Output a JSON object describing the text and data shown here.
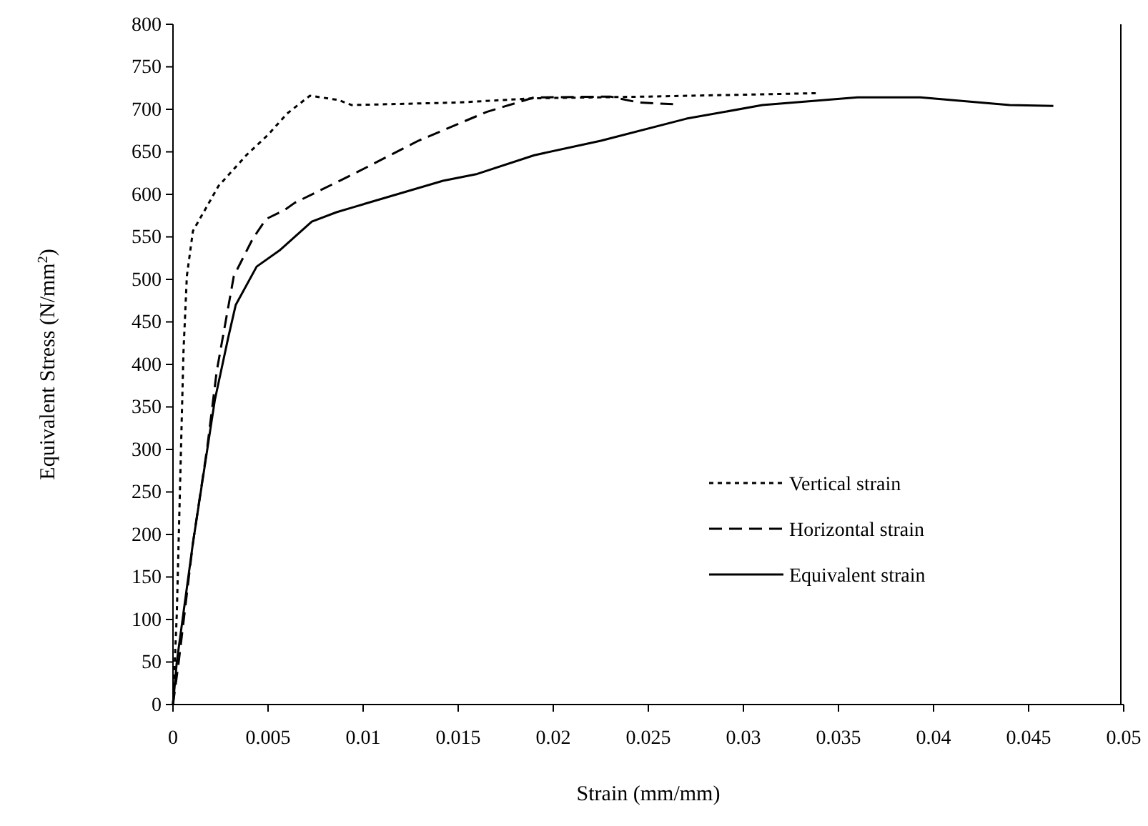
{
  "chart_data": {
    "type": "line",
    "xlabel": "Strain (mm/mm)",
    "ylabel": "Equivalent Stress (N/mm$^{2}$)",
    "xlim": [
      0,
      0.05
    ],
    "xticks": [
      0,
      0.005,
      0.01,
      0.015,
      0.02,
      0.025,
      0.03,
      0.035,
      0.04,
      0.045,
      0.05
    ],
    "ylim": [
      0,
      800
    ],
    "yticks": [
      0,
      50,
      100,
      150,
      200,
      250,
      300,
      350,
      400,
      450,
      500,
      550,
      600,
      650,
      700,
      750,
      800
    ],
    "grid": false,
    "legend": "right",
    "marker": "none",
    "series": [
      {
        "name": "Vertical strain",
        "color": "#000000",
        "line_style": "dotted",
        "x": [
          0,
          0.0002,
          0.00055,
          0.00073,
          0.00105,
          0.0024,
          0.0039,
          0.005,
          0.006,
          0.0072,
          0.0087,
          0.0094,
          0.015,
          0.019,
          0.025,
          0.034
        ],
        "values": [
          0,
          106,
          414,
          504,
          557,
          610,
          647,
          670,
          695,
          716,
          711,
          705,
          708,
          713,
          715,
          719
        ]
      },
      {
        "name": "Horizontal strain",
        "color": "#000000",
        "line_style": "dashed",
        "x": [
          0,
          0.0003,
          0.00105,
          0.0018,
          0.0023,
          0.0032,
          0.0042,
          0.0049,
          0.0059,
          0.0064,
          0.0095,
          0.0129,
          0.0165,
          0.019,
          0.023,
          0.0245,
          0.0263
        ],
        "values": [
          0,
          50,
          190,
          302,
          392,
          504,
          548,
          571,
          582,
          590,
          624,
          663,
          697,
          714,
          715,
          708,
          706
        ]
      },
      {
        "name": "Equivalent strain",
        "color": "#000000",
        "line_style": "solid",
        "x": [
          0,
          0.0002,
          0.00105,
          0.0022,
          0.0029,
          0.0033,
          0.0044,
          0.0056,
          0.0073,
          0.0086,
          0.0095,
          0.0142,
          0.016,
          0.019,
          0.0225,
          0.027,
          0.031,
          0.036,
          0.0393,
          0.044,
          0.0463
        ],
        "values": [
          0,
          50,
          190,
          358,
          431,
          470,
          515,
          534,
          568,
          579,
          585,
          616,
          624,
          646,
          663,
          689,
          705,
          714,
          714,
          705,
          704
        ]
      }
    ]
  }
}
